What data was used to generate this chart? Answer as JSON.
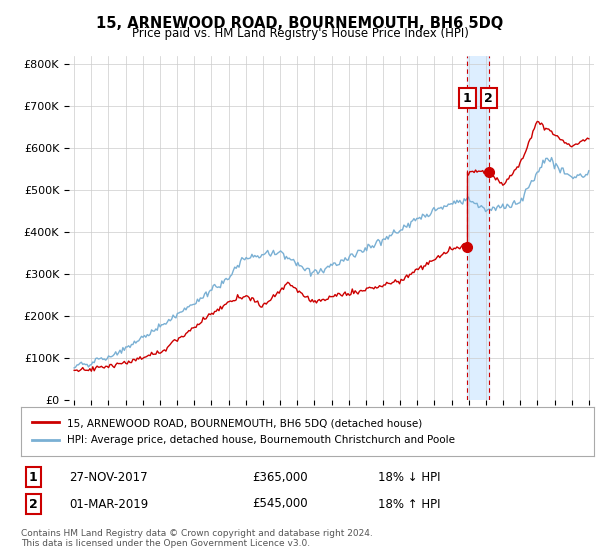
{
  "title": "15, ARNEWOOD ROAD, BOURNEMOUTH, BH6 5DQ",
  "subtitle": "Price paid vs. HM Land Registry's House Price Index (HPI)",
  "ylabel_ticks": [
    "£0",
    "£100K",
    "£200K",
    "£300K",
    "£400K",
    "£500K",
    "£600K",
    "£700K",
    "£800K"
  ],
  "ytick_values": [
    0,
    100000,
    200000,
    300000,
    400000,
    500000,
    600000,
    700000,
    800000
  ],
  "ylim": [
    0,
    820000
  ],
  "xlim_start": 1994.7,
  "xlim_end": 2025.3,
  "hpi_color": "#7ab0d4",
  "price_color": "#cc0000",
  "shade_color": "#ddeeff",
  "transaction1_year": 2017.92,
  "transaction2_year": 2019.17,
  "transaction1_price": 365000,
  "transaction2_price": 545000,
  "legend_entry1": "15, ARNEWOOD ROAD, BOURNEMOUTH, BH6 5DQ (detached house)",
  "legend_entry2": "HPI: Average price, detached house, Bournemouth Christchurch and Poole",
  "table_row1": [
    "1",
    "27-NOV-2017",
    "£365,000",
    "18% ↓ HPI"
  ],
  "table_row2": [
    "2",
    "01-MAR-2019",
    "£545,000",
    "18% ↑ HPI"
  ],
  "footer": "Contains HM Land Registry data © Crown copyright and database right 2024.\nThis data is licensed under the Open Government Licence v3.0.",
  "background_color": "#ffffff",
  "grid_color": "#cccccc"
}
